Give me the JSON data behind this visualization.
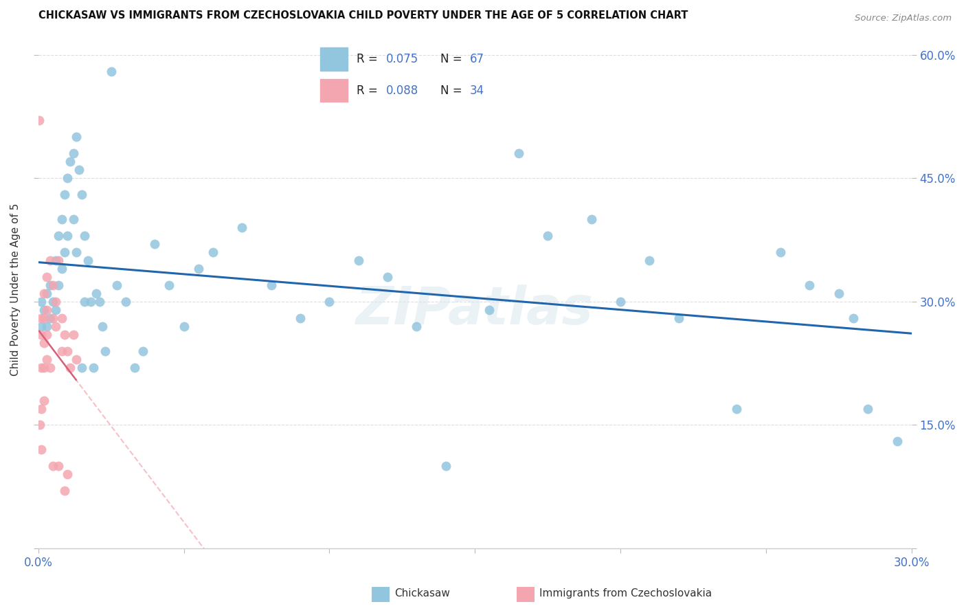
{
  "title": "CHICKASAW VS IMMIGRANTS FROM CZECHOSLOVAKIA CHILD POVERTY UNDER THE AGE OF 5 CORRELATION CHART",
  "source": "Source: ZipAtlas.com",
  "ylabel": "Child Poverty Under the Age of 5",
  "xlim": [
    0.0,
    0.3
  ],
  "ylim": [
    0.0,
    0.63
  ],
  "xticks": [
    0.0,
    0.05,
    0.1,
    0.15,
    0.2,
    0.25,
    0.3
  ],
  "yticks": [
    0.0,
    0.15,
    0.3,
    0.45,
    0.6
  ],
  "ytick_labels": [
    "",
    "15.0%",
    "30.0%",
    "45.0%",
    "60.0%"
  ],
  "blue_color": "#92c5de",
  "pink_color": "#f4a6b0",
  "blue_line_color": "#2166ac",
  "pink_line_color": "#d6607a",
  "pink_dash_color": "#f4a6b0",
  "accent_color": "#4472c4",
  "legend_r1": "0.075",
  "legend_n1": "67",
  "legend_r2": "0.088",
  "legend_n2": "34",
  "watermark": "ZIPatlas",
  "blue_scatter_x": [
    0.001,
    0.001,
    0.002,
    0.003,
    0.003,
    0.004,
    0.004,
    0.005,
    0.006,
    0.006,
    0.007,
    0.007,
    0.008,
    0.008,
    0.009,
    0.009,
    0.01,
    0.01,
    0.011,
    0.012,
    0.012,
    0.013,
    0.013,
    0.014,
    0.015,
    0.015,
    0.016,
    0.016,
    0.017,
    0.018,
    0.019,
    0.02,
    0.021,
    0.022,
    0.023,
    0.025,
    0.027,
    0.03,
    0.033,
    0.036,
    0.04,
    0.045,
    0.05,
    0.055,
    0.06,
    0.07,
    0.08,
    0.09,
    0.1,
    0.11,
    0.12,
    0.13,
    0.14,
    0.155,
    0.165,
    0.175,
    0.19,
    0.2,
    0.21,
    0.22,
    0.24,
    0.255,
    0.265,
    0.275,
    0.28,
    0.285,
    0.295
  ],
  "blue_scatter_y": [
    0.3,
    0.27,
    0.29,
    0.31,
    0.27,
    0.32,
    0.28,
    0.3,
    0.35,
    0.29,
    0.38,
    0.32,
    0.4,
    0.34,
    0.43,
    0.36,
    0.45,
    0.38,
    0.47,
    0.48,
    0.4,
    0.5,
    0.36,
    0.46,
    0.43,
    0.22,
    0.38,
    0.3,
    0.35,
    0.3,
    0.22,
    0.31,
    0.3,
    0.27,
    0.24,
    0.58,
    0.32,
    0.3,
    0.22,
    0.24,
    0.37,
    0.32,
    0.27,
    0.34,
    0.36,
    0.39,
    0.32,
    0.28,
    0.3,
    0.35,
    0.33,
    0.27,
    0.1,
    0.29,
    0.48,
    0.38,
    0.4,
    0.3,
    0.35,
    0.28,
    0.17,
    0.36,
    0.32,
    0.31,
    0.28,
    0.17,
    0.13
  ],
  "pink_scatter_x": [
    0.0003,
    0.0005,
    0.001,
    0.001,
    0.001,
    0.001,
    0.001,
    0.002,
    0.002,
    0.002,
    0.002,
    0.002,
    0.003,
    0.003,
    0.003,
    0.003,
    0.004,
    0.004,
    0.005,
    0.005,
    0.005,
    0.006,
    0.006,
    0.007,
    0.007,
    0.008,
    0.008,
    0.009,
    0.009,
    0.01,
    0.01,
    0.011,
    0.012,
    0.013
  ],
  "pink_scatter_y": [
    0.52,
    0.15,
    0.28,
    0.26,
    0.22,
    0.17,
    0.12,
    0.31,
    0.28,
    0.25,
    0.22,
    0.18,
    0.33,
    0.29,
    0.26,
    0.23,
    0.35,
    0.22,
    0.32,
    0.28,
    0.1,
    0.3,
    0.27,
    0.35,
    0.1,
    0.28,
    0.24,
    0.26,
    0.07,
    0.24,
    0.09,
    0.22,
    0.26,
    0.23
  ]
}
